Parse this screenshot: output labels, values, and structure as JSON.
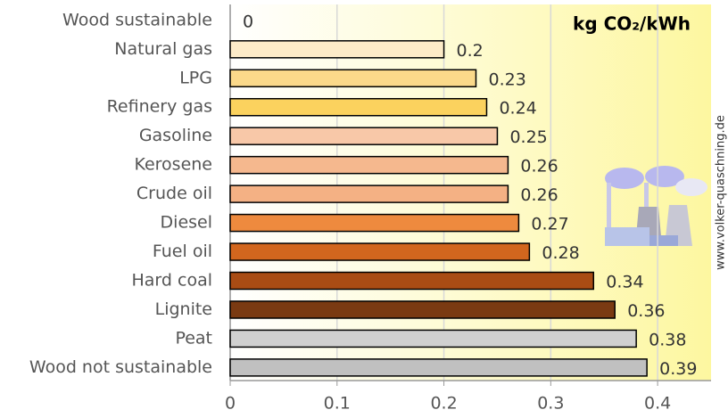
{
  "chart_data": {
    "type": "bar",
    "orientation": "horizontal",
    "title": "kg CO₂/kWh",
    "credit": "www.volker-quaschning.de",
    "categories": [
      "Wood sustainable",
      "Natural gas",
      "LPG",
      "Refinery gas",
      "Gasoline",
      "Kerosene",
      "Crude oil",
      "Diesel",
      "Fuel oil",
      "Hard coal",
      "Lignite",
      "Peat",
      "Wood not sustainable"
    ],
    "values": [
      0,
      0.2,
      0.23,
      0.24,
      0.25,
      0.26,
      0.26,
      0.27,
      0.28,
      0.34,
      0.36,
      0.38,
      0.39
    ],
    "colors": [
      "#fdebc8",
      "#fdebc8",
      "#fbd98a",
      "#fbd25e",
      "#f8c8a8",
      "#f5b88e",
      "#f4b184",
      "#ee8a3e",
      "#d2661e",
      "#a94c14",
      "#7a3a12",
      "#d0d0d0",
      "#c0c0c0"
    ],
    "xlim": [
      0,
      0.45
    ],
    "xticks": [
      0,
      0.1,
      0.2,
      0.3,
      0.4
    ],
    "grid": true
  }
}
